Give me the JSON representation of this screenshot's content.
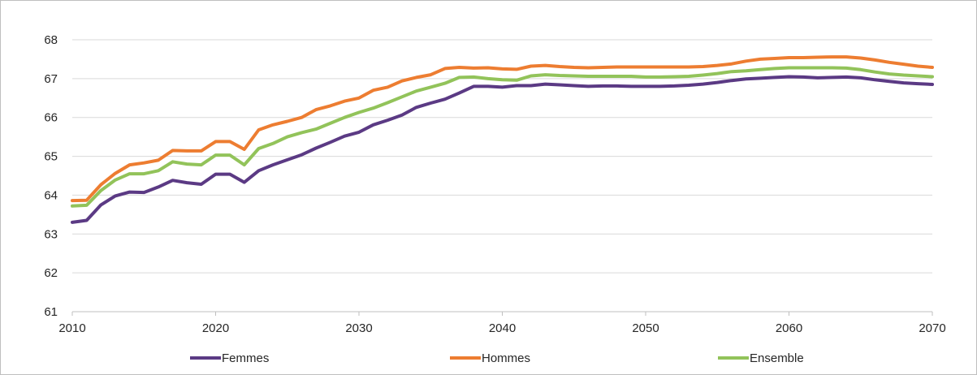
{
  "chart_data": {
    "type": "line",
    "title": "",
    "xlabel": "",
    "ylabel": "",
    "xlim": [
      2010,
      2070
    ],
    "ylim": [
      61,
      68
    ],
    "x_ticks": [
      2010,
      2020,
      2030,
      2040,
      2050,
      2060,
      2070
    ],
    "y_ticks": [
      61,
      62,
      63,
      64,
      65,
      66,
      67,
      68
    ],
    "grid": true,
    "legend_position": "bottom",
    "x": [
      2010,
      2011,
      2012,
      2013,
      2014,
      2015,
      2016,
      2017,
      2018,
      2019,
      2020,
      2021,
      2022,
      2023,
      2024,
      2025,
      2026,
      2027,
      2028,
      2029,
      2030,
      2031,
      2032,
      2033,
      2034,
      2035,
      2036,
      2037,
      2038,
      2039,
      2040,
      2041,
      2042,
      2043,
      2044,
      2045,
      2046,
      2047,
      2048,
      2049,
      2050,
      2051,
      2052,
      2053,
      2054,
      2055,
      2056,
      2057,
      2058,
      2059,
      2060,
      2061,
      2062,
      2063,
      2064,
      2065,
      2066,
      2067,
      2068,
      2069,
      2070
    ],
    "series": [
      {
        "name": "Femmes",
        "color": "#5b3a84",
        "values": [
          63.3,
          63.35,
          63.75,
          63.98,
          64.08,
          64.07,
          64.21,
          64.38,
          64.32,
          64.28,
          64.54,
          64.54,
          64.33,
          64.63,
          64.78,
          64.91,
          65.04,
          65.21,
          65.36,
          65.52,
          65.62,
          65.81,
          65.93,
          66.06,
          66.26,
          66.37,
          66.47,
          66.63,
          66.8,
          66.8,
          66.78,
          66.82,
          66.82,
          66.86,
          66.84,
          66.82,
          66.8,
          66.81,
          66.81,
          66.8,
          66.8,
          66.8,
          66.81,
          66.83,
          66.86,
          66.9,
          66.95,
          66.99,
          67.01,
          67.03,
          67.05,
          67.04,
          67.02,
          67.03,
          67.04,
          67.02,
          66.97,
          66.93,
          66.89,
          66.87,
          66.85
        ]
      },
      {
        "name": "Hommes",
        "color": "#ed7d31",
        "values": [
          63.86,
          63.87,
          64.27,
          64.56,
          64.78,
          64.83,
          64.9,
          65.15,
          65.14,
          65.14,
          65.38,
          65.38,
          65.18,
          65.68,
          65.81,
          65.9,
          66.0,
          66.2,
          66.3,
          66.42,
          66.5,
          66.7,
          66.78,
          66.94,
          67.03,
          67.1,
          67.26,
          67.29,
          67.27,
          67.28,
          67.25,
          67.24,
          67.32,
          67.34,
          67.31,
          67.29,
          67.28,
          67.29,
          67.3,
          67.3,
          67.3,
          67.3,
          67.3,
          67.3,
          67.31,
          67.34,
          67.38,
          67.45,
          67.5,
          67.52,
          67.54,
          67.54,
          67.55,
          67.56,
          67.56,
          67.53,
          67.48,
          67.42,
          67.37,
          67.32,
          67.29
        ]
      },
      {
        "name": "Ensemble",
        "color": "#92c35a",
        "values": [
          63.72,
          63.74,
          64.12,
          64.39,
          64.55,
          64.55,
          64.63,
          64.86,
          64.8,
          64.78,
          65.03,
          65.03,
          64.78,
          65.2,
          65.33,
          65.5,
          65.61,
          65.7,
          65.85,
          66.0,
          66.13,
          66.24,
          66.38,
          66.53,
          66.68,
          66.78,
          66.88,
          67.03,
          67.04,
          67.0,
          66.97,
          66.96,
          67.07,
          67.1,
          67.08,
          67.07,
          67.06,
          67.06,
          67.06,
          67.06,
          67.04,
          67.04,
          67.05,
          67.06,
          67.09,
          67.13,
          67.18,
          67.2,
          67.23,
          67.26,
          67.28,
          67.28,
          67.28,
          67.28,
          67.27,
          67.23,
          67.17,
          67.12,
          67.09,
          67.07,
          67.05
        ]
      }
    ]
  }
}
